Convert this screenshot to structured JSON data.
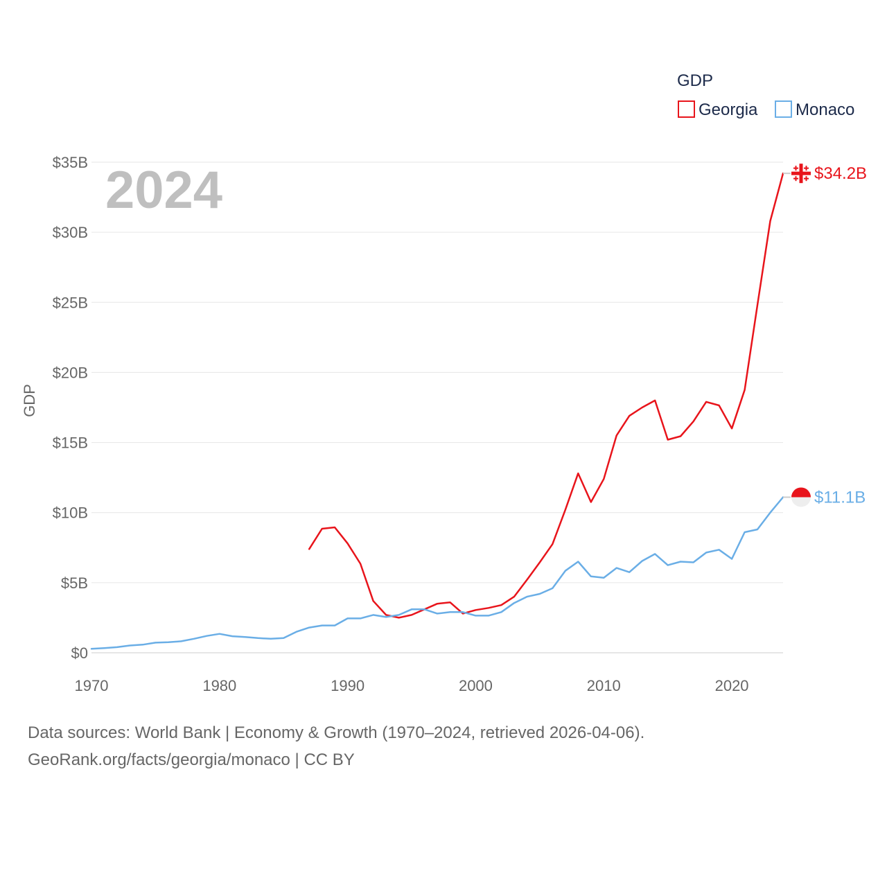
{
  "chart_data": {
    "type": "line",
    "year_label": "2024",
    "ylabel": "GDP",
    "ylim": [
      0,
      35
    ],
    "xlim": [
      1970,
      2024
    ],
    "yticks": [
      0,
      5,
      10,
      15,
      20,
      25,
      30,
      35
    ],
    "ytick_labels": [
      "$0",
      "$5B",
      "$10B",
      "$15B",
      "$20B",
      "$25B",
      "$30B",
      "$35B"
    ],
    "xticks": [
      1970,
      1980,
      1990,
      2000,
      2010,
      2020
    ],
    "xtick_labels": [
      "1970",
      "1980",
      "1990",
      "2000",
      "2010",
      "2020"
    ],
    "grid": true,
    "legend": {
      "title": "GDP",
      "placement": "top-right",
      "entries": [
        "Georgia",
        "Monaco"
      ]
    },
    "series": [
      {
        "name": "Georgia",
        "color": "#e8141b",
        "end_label": "$34.2B",
        "flag_icon": "georgia-flag-icon",
        "x": [
          1987,
          1988,
          1989,
          1990,
          1991,
          1992,
          1993,
          1994,
          1995,
          1996,
          1997,
          1998,
          1999,
          2000,
          2001,
          2002,
          2003,
          2004,
          2005,
          2006,
          2007,
          2008,
          2009,
          2010,
          2011,
          2012,
          2013,
          2014,
          2015,
          2016,
          2017,
          2018,
          2019,
          2020,
          2021,
          2022,
          2023,
          2024
        ],
        "values": [
          7.4,
          8.85,
          8.95,
          7.8,
          6.35,
          3.7,
          2.7,
          2.5,
          2.7,
          3.1,
          3.5,
          3.6,
          2.8,
          3.05,
          3.2,
          3.4,
          4.0,
          5.2,
          6.45,
          7.75,
          10.2,
          12.8,
          10.75,
          12.4,
          15.5,
          16.9,
          17.5,
          18.0,
          15.2,
          15.45,
          16.5,
          17.9,
          17.65,
          16.0,
          18.75,
          24.8,
          30.8,
          34.2
        ]
      },
      {
        "name": "Monaco",
        "color": "#6aaee6",
        "end_label": "$11.1B",
        "flag_icon": "monaco-flag-icon",
        "x": [
          1970,
          1971,
          1972,
          1973,
          1974,
          1975,
          1976,
          1977,
          1978,
          1979,
          1980,
          1981,
          1982,
          1983,
          1984,
          1985,
          1986,
          1987,
          1988,
          1989,
          1990,
          1991,
          1992,
          1993,
          1994,
          1995,
          1996,
          1997,
          1998,
          1999,
          2000,
          2001,
          2002,
          2003,
          2004,
          2005,
          2006,
          2007,
          2008,
          2009,
          2010,
          2011,
          2012,
          2013,
          2014,
          2015,
          2016,
          2017,
          2018,
          2019,
          2020,
          2021,
          2022,
          2023,
          2024
        ],
        "values": [
          0.28,
          0.33,
          0.4,
          0.52,
          0.58,
          0.72,
          0.75,
          0.82,
          1.0,
          1.2,
          1.35,
          1.18,
          1.12,
          1.05,
          1.0,
          1.05,
          1.5,
          1.8,
          1.95,
          1.95,
          2.45,
          2.45,
          2.7,
          2.55,
          2.7,
          3.1,
          3.1,
          2.8,
          2.9,
          2.9,
          2.65,
          2.65,
          2.9,
          3.55,
          4.0,
          4.2,
          4.6,
          5.85,
          6.5,
          5.45,
          5.35,
          6.05,
          5.75,
          6.55,
          7.05,
          6.25,
          6.5,
          6.45,
          7.15,
          7.35,
          6.7,
          8.6,
          8.8,
          10.0,
          11.1
        ]
      }
    ]
  },
  "footer": {
    "line1": "Data sources: World Bank | Economy & Growth (1970–2024, retrieved 2026-04-06).",
    "line2": "GeoRank.org/facts/georgia/monaco | CC BY"
  }
}
